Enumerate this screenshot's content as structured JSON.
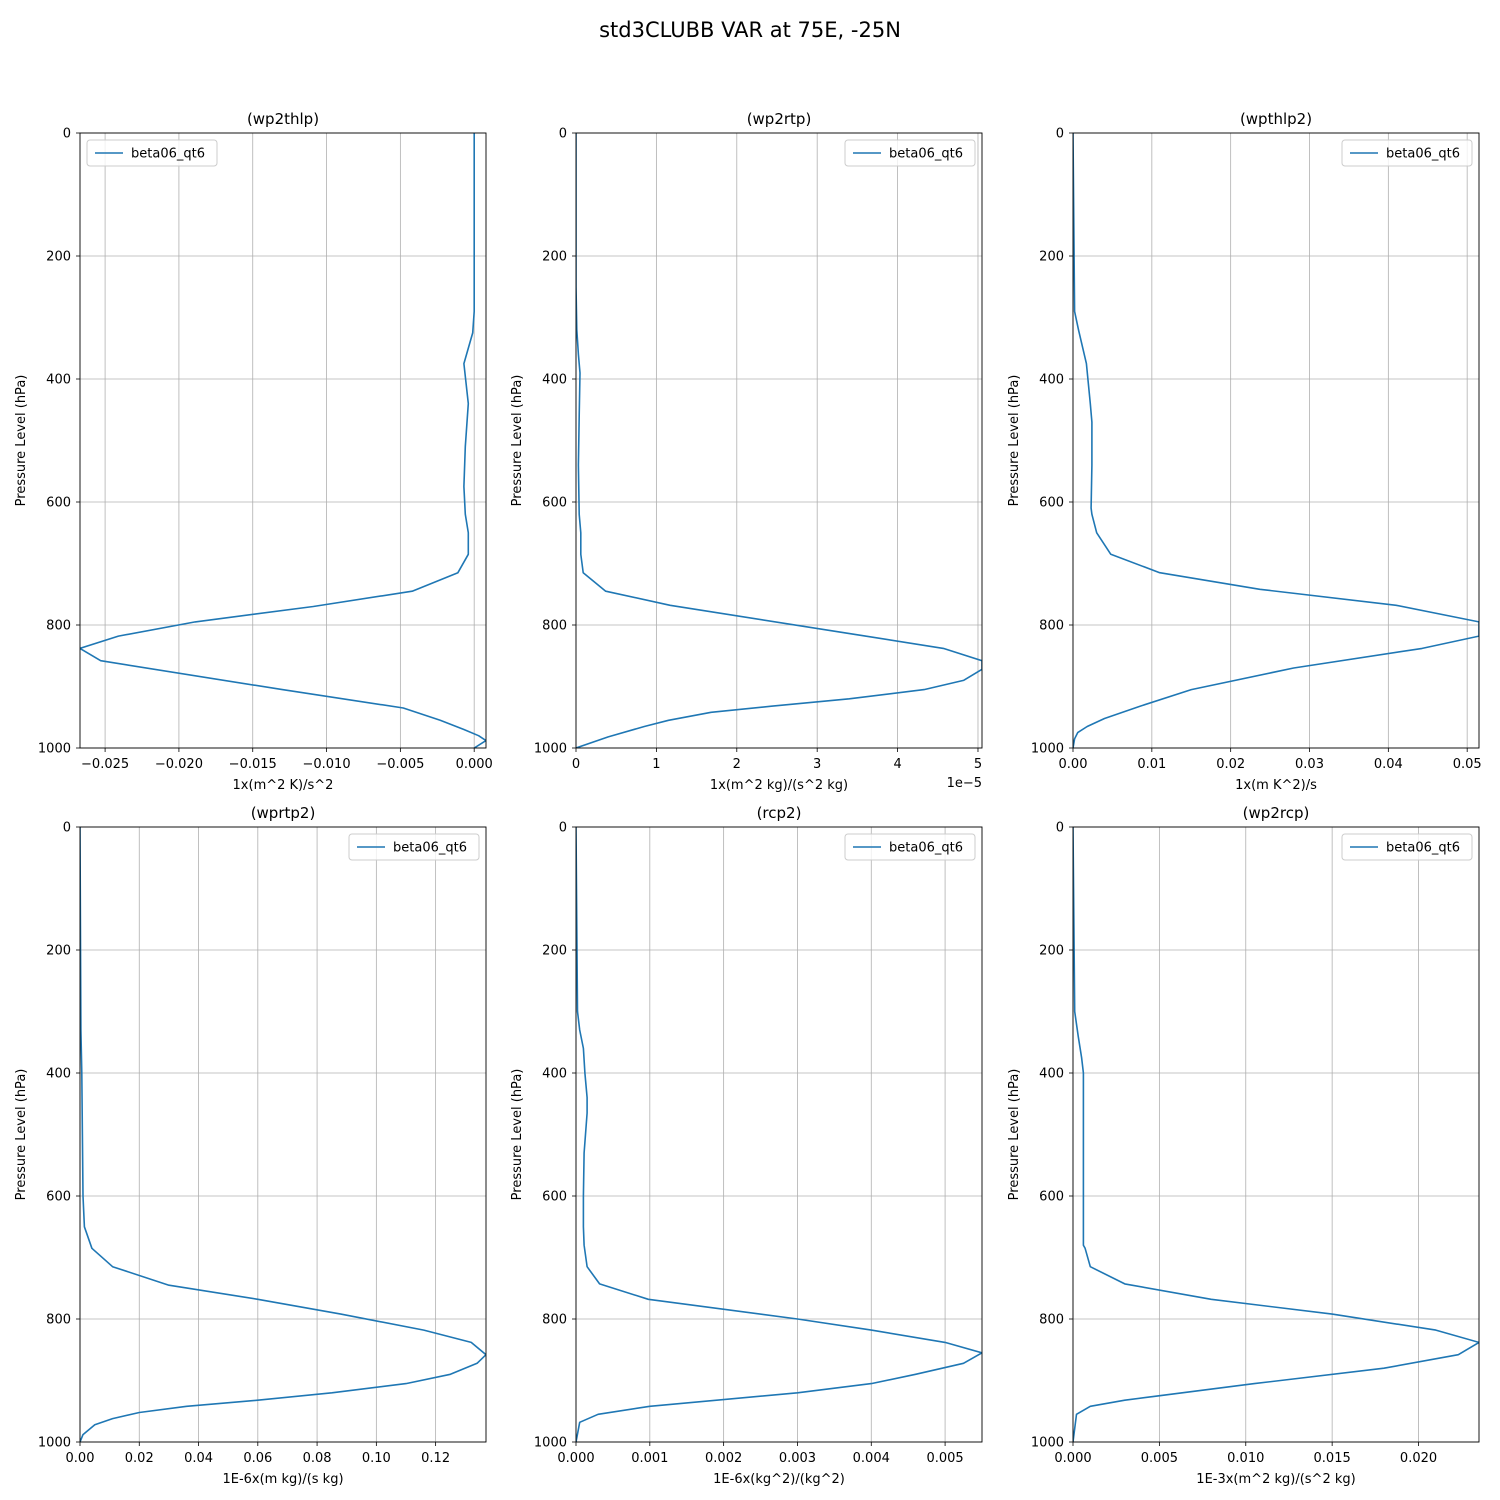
{
  "figure": {
    "suptitle": "std3CLUBB VAR at 75E, -25N"
  },
  "colors": {
    "line": "#1f77b4",
    "grid": "#b0b0b0",
    "axis": "#000000",
    "legend_border": "#cccccc"
  },
  "chart_data": [
    {
      "type": "line",
      "title": "(wp2thlp)",
      "xlabel": "1x(m^2 K)/s^2",
      "ylabel": "Pressure Level (hPa)",
      "xlim": [
        -0.0267,
        0.0008
      ],
      "ylim": [
        1000,
        0
      ],
      "xticks": [
        -0.025,
        -0.02,
        -0.015,
        -0.01,
        -0.005,
        0.0
      ],
      "xtick_labels": [
        "−0.025",
        "−0.020",
        "−0.015",
        "−0.010",
        "−0.005",
        "0.000"
      ],
      "yticks": [
        0,
        200,
        400,
        600,
        800,
        1000
      ],
      "ytick_labels": [
        "0",
        "200",
        "400",
        "600",
        "800",
        "1000"
      ],
      "grid": true,
      "legend": {
        "position": "top-left",
        "entries": [
          "beta06_qt6"
        ]
      },
      "series": [
        {
          "name": "beta06_qt6",
          "x": [
            0.0,
            0.0,
            0.0,
            -0.0001,
            -0.0007,
            -0.0004,
            -0.0006,
            -0.0007,
            -0.0006,
            -0.0004,
            -0.0004,
            -0.0011,
            -0.0042,
            -0.0109,
            -0.0189,
            -0.0241,
            -0.0267,
            -0.0253,
            -0.013,
            -0.0048,
            -0.0023,
            -0.0007,
            0.0003,
            0.0008,
            0.0
          ],
          "y": [
            0,
            150,
            290,
            325,
            375,
            440,
            510,
            575,
            620,
            650,
            685,
            715,
            745,
            770,
            795,
            818,
            838,
            858,
            905,
            935,
            955,
            970,
            980,
            988,
            1000
          ]
        }
      ]
    },
    {
      "type": "line",
      "title": "(wp2rtp)",
      "xlabel": "1x(m^2 kg)/(s^2 kg)",
      "ylabel": "Pressure Level (hPa)",
      "offset_label": "1e−5",
      "xlim": [
        0,
        5.05
      ],
      "ylim": [
        1000,
        0
      ],
      "xticks": [
        0,
        1,
        2,
        3,
        4,
        5
      ],
      "xtick_labels": [
        "0",
        "1",
        "2",
        "3",
        "4",
        "5"
      ],
      "yticks": [
        0,
        200,
        400,
        600,
        800,
        1000
      ],
      "ytick_labels": [
        "0",
        "200",
        "400",
        "600",
        "800",
        "1000"
      ],
      "grid": true,
      "legend": {
        "position": "top-right",
        "entries": [
          "beta06_qt6"
        ]
      },
      "series": [
        {
          "name": "beta06_qt6",
          "x": [
            0,
            0,
            0.01,
            0.03,
            0.05,
            0.04,
            0.03,
            0.04,
            0.06,
            0.06,
            0.09,
            0.37,
            1.17,
            3.6,
            4.57,
            5.05,
            5.05,
            4.82,
            4.33,
            3.4,
            2.43,
            1.68,
            1.15,
            0.85,
            0.4,
            0
          ],
          "y": [
            0,
            250,
            320,
            360,
            390,
            460,
            540,
            620,
            650,
            685,
            715,
            745,
            768,
            818,
            838,
            858,
            872,
            890,
            905,
            920,
            932,
            942,
            955,
            965,
            982,
            1000
          ]
        }
      ]
    },
    {
      "type": "line",
      "title": "(wpthlp2)",
      "xlabel": "1x(m K^2)/s",
      "ylabel": "Pressure Level (hPa)",
      "xlim": [
        0,
        0.0515
      ],
      "ylim": [
        1000,
        0
      ],
      "xticks": [
        0.0,
        0.01,
        0.02,
        0.03,
        0.04,
        0.05
      ],
      "xtick_labels": [
        "0.00",
        "0.01",
        "0.02",
        "0.03",
        "0.04",
        "0.05"
      ],
      "yticks": [
        0,
        200,
        400,
        600,
        800,
        1000
      ],
      "ytick_labels": [
        "0",
        "200",
        "400",
        "600",
        "800",
        "1000"
      ],
      "grid": true,
      "legend": {
        "position": "top-right",
        "entries": [
          "beta06_qt6"
        ]
      },
      "series": [
        {
          "name": "beta06_qt6",
          "x": [
            0,
            0.0002,
            0.0007,
            0.0017,
            0.0022,
            0.0024,
            0.0024,
            0.0023,
            0.0024,
            0.003,
            0.0048,
            0.011,
            0.0237,
            0.041,
            0.0515,
            0.0515,
            0.0443,
            0.028,
            0.015,
            0.0085,
            0.004,
            0.0018,
            0.0006,
            0.0002,
            0
          ],
          "y": [
            0,
            290,
            320,
            375,
            440,
            470,
            540,
            610,
            620,
            650,
            685,
            715,
            742,
            768,
            795,
            818,
            838,
            870,
            905,
            932,
            952,
            965,
            975,
            985,
            1000
          ]
        }
      ]
    },
    {
      "type": "line",
      "title": "(wprtp2)",
      "xlabel": "1E-6x(m kg)/(s kg)",
      "ylabel": "Pressure Level (hPa)",
      "xlim": [
        0,
        0.137
      ],
      "ylim": [
        1000,
        0
      ],
      "xticks": [
        0.0,
        0.02,
        0.04,
        0.06,
        0.08,
        0.1,
        0.12
      ],
      "xtick_labels": [
        "0.00",
        "0.02",
        "0.04",
        "0.06",
        "0.08",
        "0.10",
        "0.12"
      ],
      "yticks": [
        0,
        200,
        400,
        600,
        800,
        1000
      ],
      "ytick_labels": [
        "0",
        "200",
        "400",
        "600",
        "800",
        "1000"
      ],
      "grid": true,
      "legend": {
        "position": "top-right",
        "entries": [
          "beta06_qt6"
        ]
      },
      "series": [
        {
          "name": "beta06_qt6",
          "x": [
            0,
            0.0003,
            0.0006,
            0.0008,
            0.001,
            0.0015,
            0.004,
            0.011,
            0.03,
            0.06,
            0.088,
            0.116,
            0.132,
            0.137,
            0.134,
            0.125,
            0.11,
            0.085,
            0.06,
            0.036,
            0.02,
            0.011,
            0.005,
            0.001,
            0
          ],
          "y": [
            0,
            330,
            400,
            500,
            600,
            650,
            685,
            715,
            745,
            768,
            792,
            818,
            838,
            858,
            872,
            890,
            905,
            920,
            932,
            942,
            952,
            962,
            972,
            988,
            1000
          ]
        }
      ]
    },
    {
      "type": "line",
      "title": "(rcp2)",
      "xlabel": "1E-6x(kg^2)/(kg^2)",
      "ylabel": "Pressure Level (hPa)",
      "xlim": [
        0,
        0.0055
      ],
      "ylim": [
        1000,
        0
      ],
      "xticks": [
        0.0,
        0.001,
        0.002,
        0.003,
        0.004,
        0.005
      ],
      "xtick_labels": [
        "0.000",
        "0.001",
        "0.002",
        "0.003",
        "0.004",
        "0.005"
      ],
      "yticks": [
        0,
        200,
        400,
        600,
        800,
        1000
      ],
      "ytick_labels": [
        "0",
        "200",
        "400",
        "600",
        "800",
        "1000"
      ],
      "grid": true,
      "legend": {
        "position": "top-right",
        "entries": [
          "beta06_qt6"
        ]
      },
      "series": [
        {
          "name": "beta06_qt6",
          "x": [
            0,
            2e-05,
            5e-05,
            0.0001,
            0.00012,
            0.00015,
            0.00015,
            0.00011,
            0.0001,
            0.0001,
            0.00011,
            0.00015,
            0.00032,
            0.00098,
            0.003,
            0.004,
            0.005,
            0.0055,
            0.00525,
            0.0046,
            0.004,
            0.003,
            0.001,
            0.0003,
            5e-05,
            0
          ],
          "y": [
            0,
            300,
            330,
            360,
            400,
            440,
            465,
            530,
            600,
            650,
            680,
            715,
            743,
            768,
            800,
            818,
            838,
            855,
            872,
            890,
            905,
            920,
            942,
            955,
            968,
            1000
          ]
        }
      ]
    },
    {
      "type": "line",
      "title": "(wp2rcp)",
      "xlabel": "1E-3x(m^2 kg)/(s^2 kg)",
      "ylabel": "Pressure Level (hPa)",
      "xlim": [
        0,
        0.0235
      ],
      "ylim": [
        1000,
        0
      ],
      "xticks": [
        0.0,
        0.005,
        0.01,
        0.015,
        0.02
      ],
      "xtick_labels": [
        "0.000",
        "0.005",
        "0.010",
        "0.015",
        "0.020"
      ],
      "yticks": [
        0,
        200,
        400,
        600,
        800,
        1000
      ],
      "ytick_labels": [
        "0",
        "200",
        "400",
        "600",
        "800",
        "1000"
      ],
      "grid": true,
      "legend": {
        "position": "top-right",
        "entries": [
          "beta06_qt6"
        ]
      },
      "series": [
        {
          "name": "beta06_qt6",
          "x": [
            0,
            0.0001,
            0.0003,
            0.0005,
            0.0006,
            0.0006,
            0.0006,
            0.0006,
            0.0007,
            0.001,
            0.003,
            0.008,
            0.015,
            0.021,
            0.0235,
            0.0223,
            0.018,
            0.0105,
            0.003,
            0.001,
            0.0002,
            0
          ],
          "y": [
            0,
            300,
            340,
            375,
            400,
            500,
            600,
            680,
            685,
            715,
            743,
            768,
            792,
            818,
            838,
            858,
            880,
            905,
            932,
            942,
            955,
            1000
          ]
        }
      ]
    }
  ]
}
